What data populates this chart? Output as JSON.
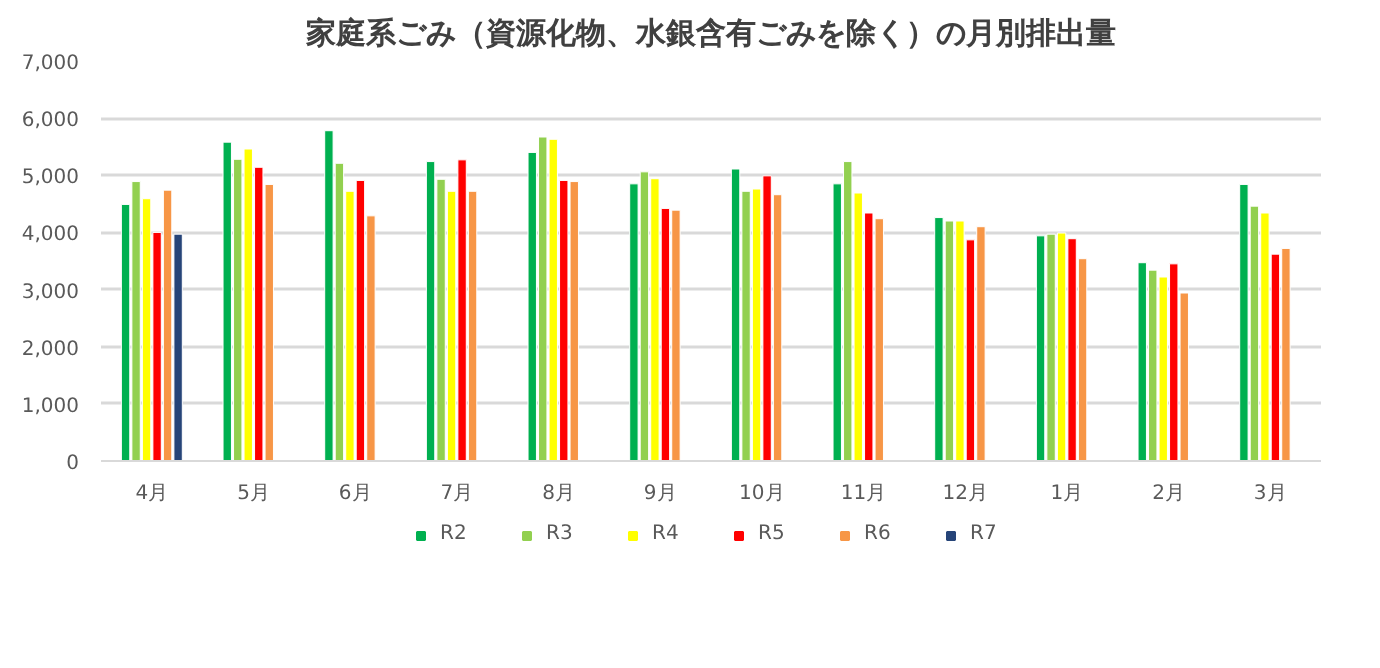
{
  "chart_data": {
    "type": "bar",
    "title": "家庭系ごみ（資源化物、水銀含有ごみを除く）の月別排出量",
    "categories": [
      "4月",
      "5月",
      "6月",
      "7月",
      "8月",
      "9月",
      "10月",
      "11月",
      "12月",
      "1月",
      "2月",
      "3月"
    ],
    "series": [
      {
        "name": "R2",
        "color": "#00b050",
        "values": [
          4490,
          5580,
          5780,
          5240,
          5400,
          4850,
          5110,
          4850,
          4260,
          3940,
          3470,
          4840
        ]
      },
      {
        "name": "R3",
        "color": "#92d050",
        "values": [
          4890,
          5280,
          5210,
          4930,
          5670,
          5060,
          4720,
          5240,
          4200,
          3970,
          3340,
          4460
        ]
      },
      {
        "name": "R4",
        "color": "#ffff00",
        "values": [
          4590,
          5460,
          4720,
          4720,
          5630,
          4940,
          4760,
          4690,
          4200,
          3990,
          3220,
          4340
        ]
      },
      {
        "name": "R5",
        "color": "#ff0000",
        "values": [
          4000,
          5140,
          4910,
          5270,
          4910,
          4420,
          4990,
          4340,
          3870,
          3890,
          3450,
          3620
        ]
      },
      {
        "name": "R6",
        "color": "#f79646",
        "values": [
          4740,
          4840,
          4290,
          4720,
          4890,
          4390,
          4660,
          4240,
          4100,
          3540,
          2940,
          3720
        ]
      },
      {
        "name": "R7",
        "color": "#264478",
        "values": [
          3970,
          null,
          null,
          null,
          null,
          null,
          null,
          null,
          null,
          null,
          null,
          null
        ]
      }
    ],
    "ylim": [
      0,
      7000
    ],
    "yticks": [
      0,
      {
        "value": 1000,
        "label": "1,000"
      },
      {
        "value": 2000,
        "label": "2,000"
      },
      {
        "value": 3000,
        "label": "3,000"
      },
      {
        "value": 4000,
        "label": "4,000"
      },
      {
        "value": 5000,
        "label": "5,000"
      },
      {
        "value": 6000,
        "label": "6,000"
      },
      {
        "value": 7000,
        "label": "7,000"
      }
    ],
    "grid": "y",
    "legend": "bottom"
  }
}
